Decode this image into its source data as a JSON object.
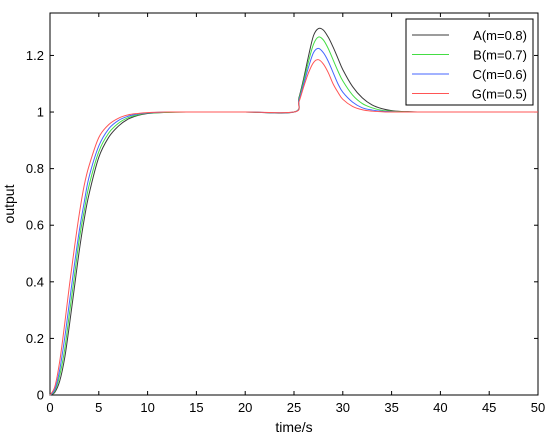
{
  "chart_data": {
    "type": "line",
    "title": "",
    "xlabel": "time/s",
    "ylabel": "output",
    "xlim": [
      0,
      50
    ],
    "ylim": [
      0,
      1.35
    ],
    "grid": false,
    "legend_position": "top-right",
    "x_ticks": [
      0,
      5,
      10,
      15,
      20,
      25,
      30,
      35,
      40,
      45,
      50
    ],
    "x_tick_labels": [
      "0",
      "5",
      "10",
      "15",
      "20",
      "25",
      "30",
      "35",
      "40",
      "45",
      "50"
    ],
    "y_ticks": [
      0,
      0.2,
      0.4,
      0.6,
      0.8,
      1,
      1.2
    ],
    "y_tick_labels": [
      "0",
      "0.2",
      "0.4",
      "0.6",
      "0.8",
      "1",
      "1.2"
    ],
    "series": [
      {
        "name": "A(m=0.8)",
        "color": "#3a3a3a",
        "x": [
          0,
          0.5,
          1,
          1.5,
          2,
          2.5,
          3,
          3.5,
          4,
          5,
          6,
          7,
          8,
          9,
          10,
          12,
          14,
          20,
          25,
          25.5,
          26,
          26.5,
          27,
          27.5,
          28,
          28.5,
          29,
          29.5,
          30,
          31,
          32,
          33,
          34,
          35,
          36,
          37,
          38,
          40,
          45,
          50
        ],
        "y": [
          0,
          0.01,
          0.05,
          0.13,
          0.25,
          0.38,
          0.51,
          0.62,
          0.71,
          0.84,
          0.91,
          0.95,
          0.975,
          0.988,
          0.995,
          0.999,
          1,
          1,
          1,
          1.05,
          1.12,
          1.2,
          1.27,
          1.295,
          1.29,
          1.265,
          1.23,
          1.19,
          1.15,
          1.09,
          1.05,
          1.025,
          1.012,
          1.005,
          1.002,
          1.001,
          1,
          1,
          1,
          1
        ]
      },
      {
        "name": "B(m=0.7)",
        "color": "#44dd44",
        "x": [
          0,
          0.5,
          1,
          1.5,
          2,
          2.5,
          3,
          3.5,
          4,
          5,
          6,
          7,
          8,
          9,
          10,
          12,
          14,
          20,
          25,
          25.5,
          26,
          26.5,
          27,
          27.5,
          28,
          28.5,
          29,
          29.5,
          30,
          31,
          32,
          33,
          34,
          35,
          36,
          38,
          40,
          45,
          50
        ],
        "y": [
          0,
          0.015,
          0.07,
          0.16,
          0.29,
          0.42,
          0.55,
          0.65,
          0.74,
          0.86,
          0.925,
          0.96,
          0.98,
          0.99,
          0.996,
          0.999,
          1,
          1,
          1,
          1.045,
          1.11,
          1.18,
          1.24,
          1.265,
          1.255,
          1.225,
          1.185,
          1.145,
          1.11,
          1.06,
          1.03,
          1.015,
          1.006,
          1.003,
          1.001,
          1,
          1,
          1,
          1
        ]
      },
      {
        "name": "C(m=0.6)",
        "color": "#4466ff",
        "x": [
          0,
          0.5,
          1,
          1.5,
          2,
          2.5,
          3,
          3.5,
          4,
          5,
          6,
          7,
          8,
          9,
          10,
          12,
          14,
          20,
          25,
          25.5,
          26,
          26.5,
          27,
          27.5,
          28,
          28.5,
          29,
          29.5,
          30,
          31,
          32,
          33,
          34,
          35,
          36,
          38,
          40,
          45,
          50
        ],
        "y": [
          0,
          0.02,
          0.09,
          0.2,
          0.33,
          0.46,
          0.58,
          0.68,
          0.77,
          0.88,
          0.94,
          0.97,
          0.985,
          0.993,
          0.997,
          1,
          1,
          1,
          1,
          1.04,
          1.1,
          1.16,
          1.21,
          1.225,
          1.21,
          1.18,
          1.14,
          1.1,
          1.07,
          1.035,
          1.015,
          1.007,
          1.003,
          1.001,
          1,
          1,
          1,
          1,
          1
        ]
      },
      {
        "name": "G(m=0.5)",
        "color": "#ff5555",
        "x": [
          0,
          0.5,
          1,
          1.5,
          2,
          2.5,
          3,
          3.5,
          4,
          5,
          6,
          7,
          8,
          9,
          10,
          12,
          14,
          20,
          25,
          25.5,
          26,
          26.5,
          27,
          27.5,
          28,
          28.5,
          29,
          29.5,
          30,
          31,
          32,
          33,
          34,
          35,
          38,
          40,
          45,
          50
        ],
        "y": [
          0,
          0.03,
          0.12,
          0.25,
          0.39,
          0.52,
          0.64,
          0.74,
          0.81,
          0.91,
          0.955,
          0.978,
          0.99,
          0.995,
          0.998,
          1,
          1,
          1,
          1,
          1.035,
          1.09,
          1.14,
          1.175,
          1.185,
          1.17,
          1.14,
          1.1,
          1.07,
          1.045,
          1.02,
          1.008,
          1.003,
          1.001,
          1,
          1,
          1,
          1,
          1
        ]
      }
    ]
  }
}
